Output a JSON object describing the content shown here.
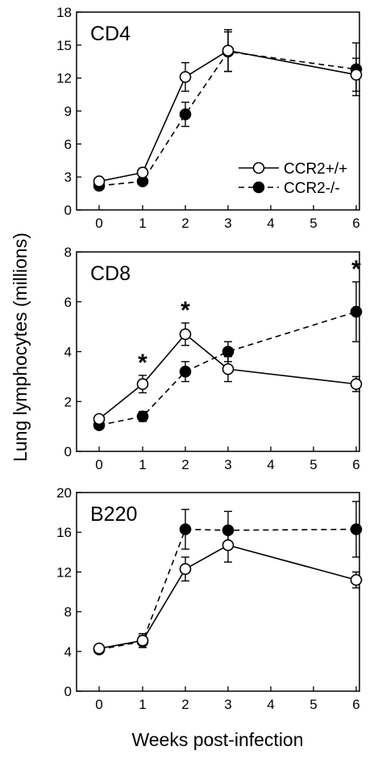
{
  "chart_data": {
    "type": "line",
    "xlabel": "Weeks post-infection",
    "ylabel": "Lung lymphocytes (millions)",
    "legend": {
      "placement": "inside-top-panel-right",
      "entries": [
        "CCR2+/+",
        "CCR2-/-"
      ]
    },
    "x_ticks": [
      0,
      1,
      2,
      3,
      4,
      5,
      6
    ],
    "panels": [
      {
        "label": "CD4",
        "ylim": [
          0,
          18
        ],
        "y_ticks": [
          0,
          3,
          6,
          9,
          12,
          15,
          18
        ],
        "series": [
          {
            "name": "CCR2+/+",
            "marker": "open-circle",
            "line": "solid",
            "x": [
              0,
              1,
              2,
              3,
              6
            ],
            "y": [
              2.6,
              3.4,
              12.1,
              14.5,
              12.3
            ],
            "err": [
              0.3,
              0.4,
              1.3,
              1.9,
              1.5
            ]
          },
          {
            "name": "CCR2-/-",
            "marker": "filled-circle",
            "line": "dashed",
            "x": [
              0,
              1,
              2,
              3,
              6
            ],
            "y": [
              2.2,
              2.6,
              8.7,
              14.4,
              12.8
            ],
            "err": [
              0.2,
              0.2,
              1.1,
              1.8,
              2.4
            ]
          }
        ],
        "significant": []
      },
      {
        "label": "CD8",
        "ylim": [
          0,
          8
        ],
        "y_ticks": [
          0,
          2,
          4,
          6,
          8
        ],
        "series": [
          {
            "name": "CCR2+/+",
            "marker": "open-circle",
            "line": "solid",
            "x": [
              0,
              1,
              2,
              3,
              6
            ],
            "y": [
              1.3,
              2.7,
              4.7,
              3.3,
              2.7
            ],
            "err": [
              0.15,
              0.35,
              0.45,
              0.5,
              0.3
            ]
          },
          {
            "name": "CCR2-/-",
            "marker": "filled-circle",
            "line": "dashed",
            "x": [
              0,
              1,
              2,
              3,
              6
            ],
            "y": [
              1.05,
              1.4,
              3.2,
              4.0,
              5.6
            ],
            "err": [
              0.1,
              0.2,
              0.4,
              0.4,
              1.2
            ]
          }
        ],
        "significant": [
          1,
          2,
          6
        ],
        "significance_marker": "*"
      },
      {
        "label": "B220",
        "ylim": [
          0,
          20
        ],
        "y_ticks": [
          0,
          4,
          8,
          12,
          16,
          20
        ],
        "series": [
          {
            "name": "CCR2+/+",
            "marker": "open-circle",
            "line": "solid",
            "x": [
              0,
              1,
              2,
              3,
              6
            ],
            "y": [
              4.3,
              5.1,
              12.3,
              14.7,
              11.2
            ],
            "err": [
              0.3,
              0.7,
              1.2,
              1.7,
              0.8
            ]
          },
          {
            "name": "CCR2-/-",
            "marker": "filled-circle",
            "line": "dashed",
            "x": [
              0,
              1,
              2,
              3,
              6
            ],
            "y": [
              4.2,
              5.0,
              16.3,
              16.2,
              16.3
            ],
            "err": [
              0.3,
              0.6,
              2.0,
              1.9,
              2.8
            ]
          }
        ],
        "significant": []
      }
    ]
  }
}
